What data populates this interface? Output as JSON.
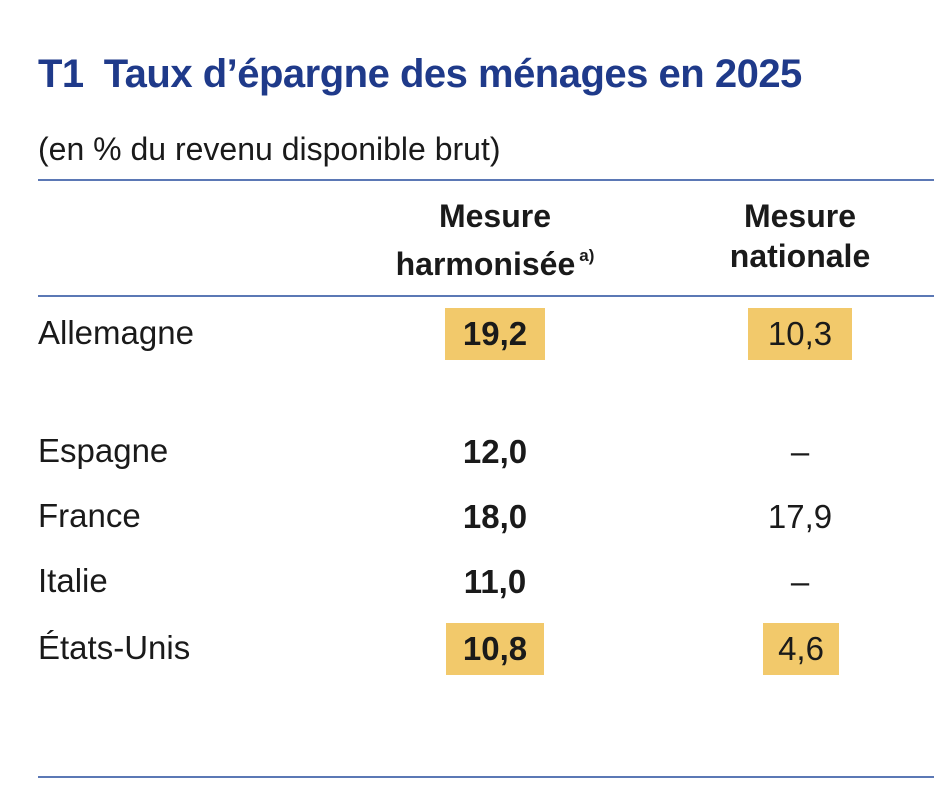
{
  "table": {
    "code": "T1",
    "title": "Taux d’épargne des ménages en 2025",
    "subtitle": "(en % du revenu disponible brut)",
    "columns": [
      {
        "label_line1": "Mesure",
        "label_line2": "harmonisée",
        "note": "a)"
      },
      {
        "label_line1": "Mesure",
        "label_line2": "nationale",
        "note": ""
      }
    ],
    "rows": [
      {
        "country": "Allemagne",
        "harmonised": "19,2",
        "national": "10,3",
        "highlight": true
      },
      {
        "country": "Espagne",
        "harmonised": "12,0",
        "national": "–",
        "highlight": false
      },
      {
        "country": "France",
        "harmonised": "18,0",
        "national": "17,9",
        "highlight": false
      },
      {
        "country": "Italie",
        "harmonised": "11,0",
        "national": "–",
        "highlight": false
      },
      {
        "country": "États-Unis",
        "harmonised": "10,8",
        "national": "4,6",
        "highlight": true
      }
    ],
    "highlight_color": "#f2c96b",
    "title_color": "#1f3a8a"
  }
}
